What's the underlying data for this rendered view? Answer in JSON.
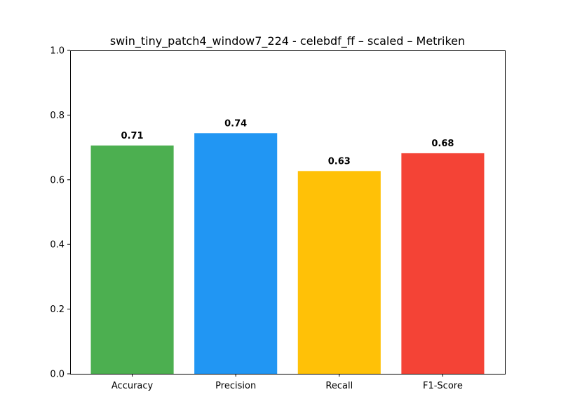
{
  "chart_data": {
    "type": "bar",
    "title": "swin_tiny_patch4_window7_224 - celebdf_ff – scaled – Metriken",
    "xlabel": "",
    "ylabel": "",
    "categories": [
      "Accuracy",
      "Precision",
      "Recall",
      "F1-Score"
    ],
    "values": [
      0.706,
      0.744,
      0.627,
      0.682
    ],
    "value_labels": [
      "0.71",
      "0.74",
      "0.63",
      "0.68"
    ],
    "colors": [
      "#4caf50",
      "#2196f3",
      "#ffc107",
      "#f44336"
    ],
    "ylim": [
      0,
      1.0
    ],
    "yticks": [
      0.0,
      0.2,
      0.4,
      0.6,
      0.8,
      1.0
    ],
    "ytick_labels": [
      "0.0",
      "0.2",
      "0.4",
      "0.6",
      "0.8",
      "1.0"
    ],
    "grid": false,
    "legend": "none"
  }
}
